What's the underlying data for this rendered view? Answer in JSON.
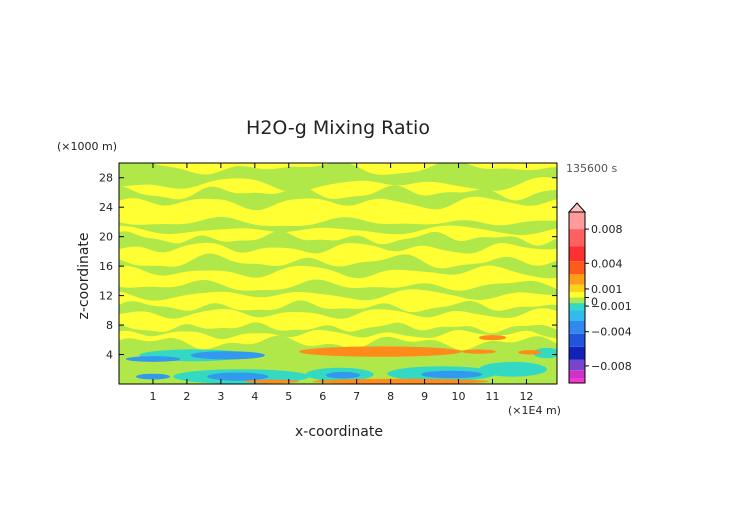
{
  "chart_data": {
    "type": "heatmap",
    "title": "H2O-g Mixing Ratio",
    "xlabel": "x-coordinate",
    "ylabel": "z-coordinate",
    "x_unit": "(×1E4 m)",
    "y_unit": "(×1000 m)",
    "time_label": "135600 s",
    "xlim": [
      0,
      12.9
    ],
    "ylim": [
      0,
      30
    ],
    "x_ticks": [
      1,
      2,
      3,
      4,
      5,
      6,
      7,
      8,
      9,
      10,
      11,
      12
    ],
    "y_ticks": [
      4,
      8,
      12,
      16,
      20,
      24,
      28
    ],
    "colorbar": {
      "range": [
        -0.01,
        0.01
      ],
      "labels": [
        {
          "value": 0.008,
          "text": "0.008"
        },
        {
          "value": 0.004,
          "text": "0.004"
        },
        {
          "value": 0.001,
          "text": "0.001"
        },
        {
          "value": 0,
          "text": "0"
        },
        {
          "value": -0.001,
          "text": "−0.001"
        },
        {
          "value": -0.004,
          "text": "−0.004"
        },
        {
          "value": -0.008,
          "text": "−0.008"
        }
      ]
    },
    "colors": {
      "yellow": "#ffff33",
      "green": "#b0e84a",
      "cyan": "#33d9c2",
      "blue": "#3399ee",
      "orange": "#ff8c1a"
    }
  }
}
